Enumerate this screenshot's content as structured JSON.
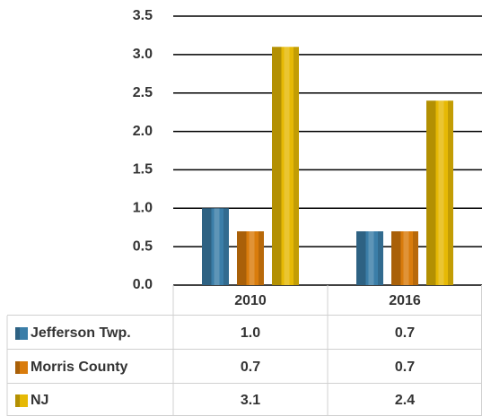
{
  "chart_data": {
    "type": "bar",
    "categories": [
      "2010",
      "2016"
    ],
    "series": [
      {
        "name": "Jefferson Twp.",
        "color": "#3b7ea8",
        "values": [
          1.0,
          0.7
        ],
        "value_labels": [
          "1.0",
          "0.7"
        ]
      },
      {
        "name": "Morris County",
        "color": "#d97c0c",
        "values": [
          0.7,
          0.7
        ],
        "value_labels": [
          "0.7",
          "0.7"
        ]
      },
      {
        "name": "NJ",
        "color": "#e6b905",
        "values": [
          3.1,
          2.4
        ],
        "value_labels": [
          "3.1",
          "2.4"
        ]
      }
    ],
    "ylim": [
      0,
      3.5
    ],
    "yticks": [
      {
        "value": 0,
        "label": "0.0"
      },
      0.5,
      {
        "value": 1,
        "label": "1.0"
      },
      1.5,
      {
        "value": 2,
        "label": "2.0"
      },
      2.5,
      {
        "value": 3,
        "label": "3.0"
      },
      3.5
    ],
    "grid": true,
    "data_table": true
  }
}
